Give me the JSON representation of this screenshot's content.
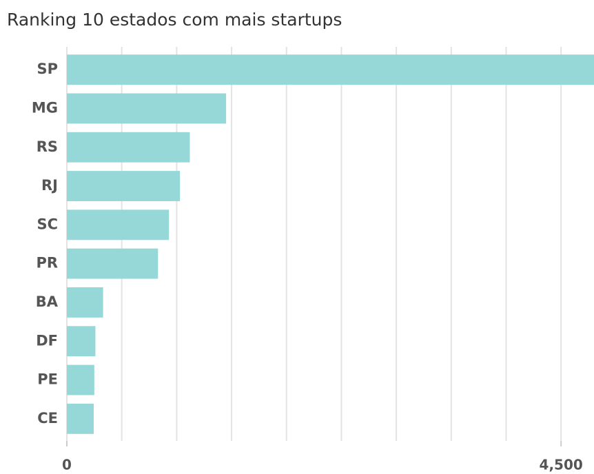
{
  "chart_data": {
    "type": "hbar",
    "title": "Ranking 10 estados com mais startups",
    "categories": [
      "SP",
      "MG",
      "RS",
      "RJ",
      "SC",
      "PR",
      "BA",
      "DF",
      "PE",
      "CE"
    ],
    "values": [
      4800,
      1450,
      1120,
      1030,
      930,
      830,
      330,
      260,
      250,
      245
    ],
    "color": "#96d8d8",
    "xlim": [
      0,
      4800
    ],
    "xticks": [
      0,
      {
        "value": 4500,
        "label": "4,500"
      }
    ],
    "grid_lines": [
      0,
      500,
      1000,
      1500,
      2000,
      2500,
      3000,
      3500,
      4000,
      4500
    ],
    "grid": true
  }
}
